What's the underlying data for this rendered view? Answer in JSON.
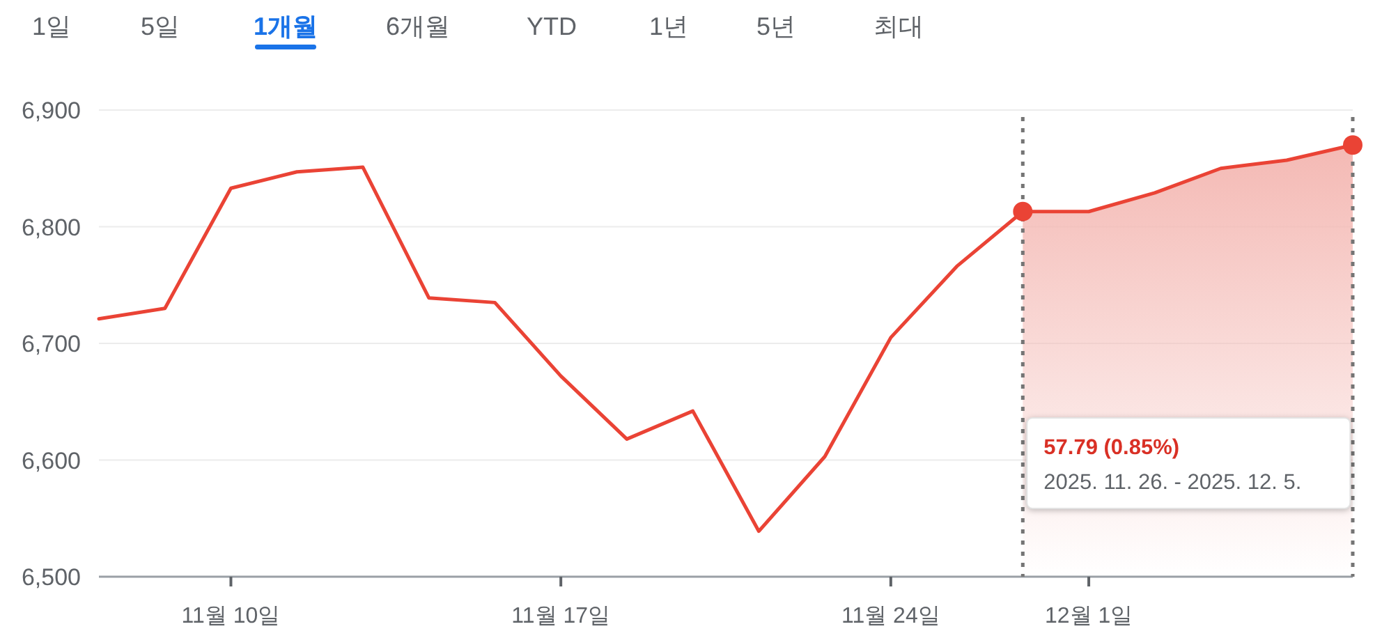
{
  "chart_data": {
    "type": "line",
    "categories": [
      null,
      null,
      "11월 10일",
      null,
      null,
      null,
      null,
      "11월 17일",
      null,
      null,
      null,
      null,
      "11월 24일",
      null,
      null,
      "12월 1일",
      null,
      null,
      null,
      null
    ],
    "series": [
      {
        "color": "#ea4335",
        "values": [
          6721,
          6730,
          6833,
          6847,
          6851,
          6739,
          6735,
          6672,
          6618,
          6642,
          6539,
          6603,
          6705,
          6766,
          6813,
          6813,
          6829,
          6850,
          6857,
          6870
        ]
      },
      {
        "type": "area",
        "color": "#f4b9b4",
        "values": [
          null,
          null,
          null,
          null,
          null,
          null,
          null,
          null,
          null,
          null,
          null,
          null,
          null,
          null,
          6813,
          6813,
          6829,
          6850,
          6857,
          6870
        ]
      },
      {
        "type": "scatter",
        "color": "#ea4335",
        "marker": "circle",
        "values": [
          null,
          null,
          null,
          null,
          null,
          null,
          null,
          null,
          null,
          null,
          null,
          null,
          null,
          null,
          6813,
          null,
          null,
          null,
          null,
          6870
        ]
      }
    ],
    "ylim": [
      6500,
      6900
    ],
    "yticks": [
      {
        "value": 6500,
        "label": "6,500"
      },
      {
        "value": 6600,
        "label": "6,600"
      },
      {
        "value": 6700,
        "label": "6,700"
      },
      {
        "value": 6800,
        "label": "6,800"
      },
      {
        "value": 6900,
        "label": "6,900"
      }
    ],
    "grid": "y",
    "annotations": [
      "1일",
      "5일",
      "1개월",
      "6개월",
      "YTD",
      "1년",
      "5년",
      "최대",
      "57.79 (0.85%)",
      "2025. 11. 26. - 2025. 12. 5."
    ]
  }
}
